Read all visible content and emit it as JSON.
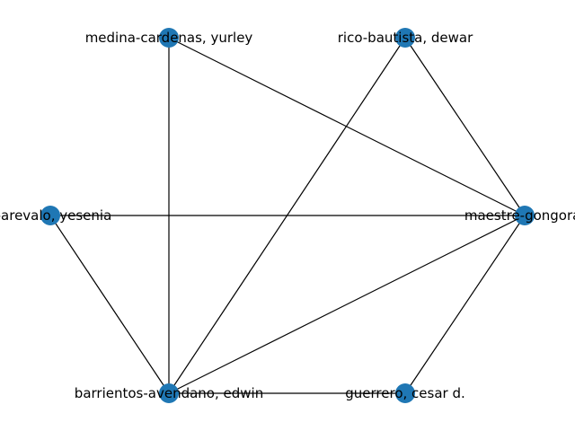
{
  "graph": {
    "node_color": "#1f77b4",
    "edge_color": "#000000",
    "nodes": [
      {
        "id": "medina",
        "label": "medina-cardenas, yurley"
      },
      {
        "id": "rico",
        "label": "rico-bautista, dewar"
      },
      {
        "id": "yesenia",
        "label": "z-arevalo, yesenia"
      },
      {
        "id": "maestre",
        "label": "maestre-gongora,"
      },
      {
        "id": "barrientos",
        "label": "barrientos-avendano, edwin"
      },
      {
        "id": "guerrero",
        "label": "guerrero, cesar d."
      }
    ],
    "edges": [
      [
        "medina",
        "maestre"
      ],
      [
        "medina",
        "barrientos"
      ],
      [
        "rico",
        "maestre"
      ],
      [
        "rico",
        "barrientos"
      ],
      [
        "yesenia",
        "maestre"
      ],
      [
        "yesenia",
        "barrientos"
      ],
      [
        "maestre",
        "barrientos"
      ],
      [
        "maestre",
        "guerrero"
      ],
      [
        "barrientos",
        "guerrero"
      ]
    ]
  }
}
